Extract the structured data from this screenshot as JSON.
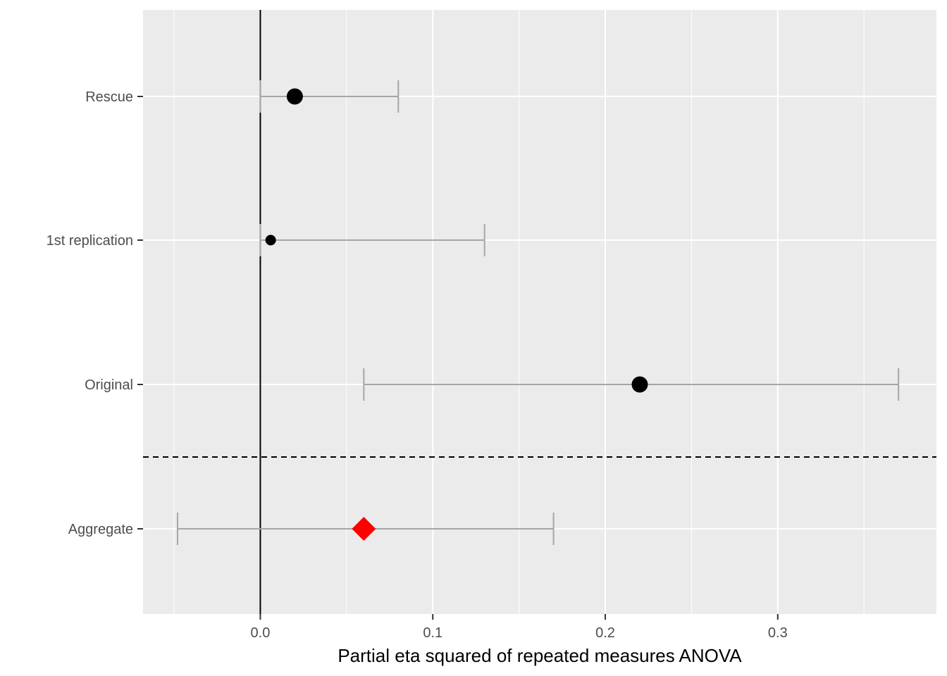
{
  "chart_data": {
    "type": "forest",
    "title": "",
    "xlabel": "Partial eta squared of repeated measures ANOVA",
    "ylabel": "",
    "xlim": [
      -0.068,
      0.392
    ],
    "x_ticks": [
      0.0,
      0.1,
      0.2,
      0.3
    ],
    "x_tick_labels": [
      "0.0",
      "0.1",
      "0.2",
      "0.3"
    ],
    "x_minor_ticks": [
      -0.05,
      0.05,
      0.15,
      0.25,
      0.35
    ],
    "grid": true,
    "reference_line_x": 0.0,
    "separator_between": [
      "Original",
      "Aggregate"
    ],
    "categories": [
      "Rescue",
      "1st replication",
      "Original",
      "Aggregate"
    ],
    "rows": [
      {
        "label": "Rescue",
        "estimate": 0.02,
        "lower": 0.0,
        "upper": 0.08,
        "shape": "circle",
        "point_size": "large",
        "color": "#000000"
      },
      {
        "label": "1st replication",
        "estimate": 0.006,
        "lower": 0.0,
        "upper": 0.13,
        "shape": "circle",
        "point_size": "small",
        "color": "#000000"
      },
      {
        "label": "Original",
        "estimate": 0.22,
        "lower": 0.06,
        "upper": 0.37,
        "shape": "circle",
        "point_size": "large",
        "color": "#000000"
      },
      {
        "label": "Aggregate",
        "estimate": 0.06,
        "lower": -0.048,
        "upper": 0.17,
        "shape": "diamond",
        "point_size": "large",
        "color": "#ff0000"
      }
    ],
    "colors": {
      "panel": "#ebebeb",
      "grid": "#ffffff",
      "errorbar": "#a6a6a6",
      "point": "#000000",
      "aggregate": "#ff0000"
    }
  }
}
